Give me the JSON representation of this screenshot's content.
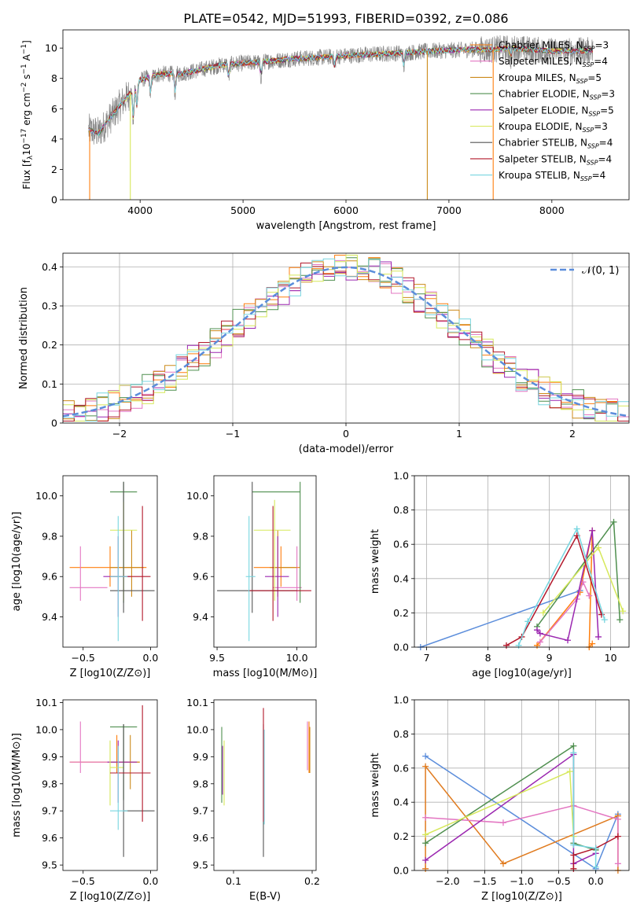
{
  "figure": {
    "title": "PLATE=0542, MJD=51993, FIBERID=0392, z=0.086"
  },
  "colors": {
    "chabrier_miles": "#ff7f0e",
    "salpeter_miles": "#e377c2",
    "kroupa_miles": "#cc8a1a",
    "chabrier_elodie": "#4f8f4f",
    "salpeter_elodie": "#9b27b0",
    "kroupa_elodie": "#d6e85a",
    "chabrier_stelib": "#555555",
    "salpeter_stelib": "#b2182b",
    "kroupa_stelib": "#78d6e0",
    "normal_curve": "#5b8ddb",
    "raw_spectrum": "#888888"
  },
  "chart_data": [
    {
      "id": "spectrum",
      "type": "line",
      "xlabel": "wavelength [Angstrom, rest frame]",
      "ylabel": "Flux [f_λ 10^-17 erg cm^-2 s^-1 A^-1]",
      "xlim": [
        3250,
        8750
      ],
      "ylim": [
        0,
        11.2
      ],
      "xticks": [
        4000,
        5000,
        6000,
        7000,
        8000
      ],
      "yticks": [
        0,
        2,
        4,
        6,
        8,
        10
      ],
      "grid": false,
      "legend_position": "right",
      "series": [
        {
          "name": "Chabrier MILES, N_SSP=3",
          "color": "#ff7f0e"
        },
        {
          "name": "Salpeter MILES, N_SSP=4",
          "color": "#e377c2"
        },
        {
          "name": "Kroupa MILES, N_SSP=5",
          "color": "#cc8a1a"
        },
        {
          "name": "Chabrier ELODIE, N_SSP=3",
          "color": "#4f8f4f"
        },
        {
          "name": "Salpeter ELODIE, N_SSP=5",
          "color": "#9b27b0"
        },
        {
          "name": "Kroupa ELODIE, N_SSP=3",
          "color": "#d6e85a"
        },
        {
          "name": "Chabrier STELIB, N_SSP=4",
          "color": "#555555"
        },
        {
          "name": "Salpeter STELIB, N_SSP=4",
          "color": "#b2182b"
        },
        {
          "name": "Kroupa STELIB, N_SSP=4",
          "color": "#78d6e0"
        }
      ],
      "continuum": {
        "x": [
          3500,
          3600,
          3700,
          3800,
          3900,
          4000,
          4200,
          4400,
          4600,
          4800,
          5000,
          5200,
          5500,
          5800,
          6000,
          6300,
          6600,
          6800,
          7000,
          7200,
          7400,
          7600,
          7800,
          8000,
          8200,
          8400,
          8700
        ],
        "y": [
          4.6,
          4.4,
          5.3,
          6.2,
          7.0,
          7.9,
          8.3,
          8.3,
          8.6,
          8.9,
          9.0,
          9.1,
          9.3,
          9.4,
          9.5,
          9.6,
          9.7,
          9.8,
          9.85,
          9.9,
          9.9,
          10.0,
          9.9,
          9.8,
          9.8,
          9.85,
          9.75
        ]
      }
    },
    {
      "id": "residuals",
      "type": "histogram",
      "xlabel": "(data-model)/error",
      "ylabel": "Normed distribution",
      "xlim": [
        -2.5,
        2.5
      ],
      "ylim": [
        0,
        0.435
      ],
      "xticks": [
        -2,
        -1,
        0,
        1,
        2
      ],
      "yticks": [
        0.0,
        0.1,
        0.2,
        0.3,
        0.4
      ],
      "grid": true,
      "legend": "𝒩(0, 1)",
      "legend_position": "top-right",
      "bin_width": 0.1
    },
    {
      "id": "age_vs_Z",
      "type": "errorbar",
      "xlabel": "Z [log10(Z/Z⊙)]",
      "ylabel": "age [log10(age/yr)]",
      "xlim": [
        -0.65,
        0.05
      ],
      "ylim": [
        9.25,
        10.1
      ],
      "xticks": [
        -0.5,
        0.0
      ],
      "yticks": [
        9.4,
        9.6,
        9.8,
        10.0
      ],
      "points": [
        {
          "model": "chabrier_miles",
          "x": -0.3,
          "y": 9.645,
          "xlo": -0.6,
          "xhi": -0.03,
          "ylo": 9.55,
          "yhi": 9.75
        },
        {
          "model": "salpeter_miles",
          "x": -0.52,
          "y": 9.545,
          "xlo": -0.6,
          "xhi": -0.32,
          "ylo": 9.48,
          "yhi": 9.75
        },
        {
          "model": "kroupa_miles",
          "x": -0.14,
          "y": 9.645,
          "xlo": -0.3,
          "xhi": -0.05,
          "ylo": 9.5,
          "yhi": 9.83
        },
        {
          "model": "chabrier_elodie",
          "x": -0.2,
          "y": 10.02,
          "xlo": -0.3,
          "xhi": -0.1,
          "ylo": 9.47,
          "yhi": 10.07
        },
        {
          "model": "salpeter_elodie",
          "x": -0.24,
          "y": 9.6,
          "xlo": -0.35,
          "xhi": -0.15,
          "ylo": 9.4,
          "yhi": 9.8
        },
        {
          "model": "kroupa_elodie",
          "x": -0.2,
          "y": 9.83,
          "xlo": -0.3,
          "xhi": -0.1,
          "ylo": 9.48,
          "yhi": 9.97
        },
        {
          "model": "chabrier_stelib",
          "x": -0.2,
          "y": 9.53,
          "xlo": -0.3,
          "xhi": 0.03,
          "ylo": 9.42,
          "yhi": 10.07
        },
        {
          "model": "salpeter_stelib",
          "x": -0.06,
          "y": 9.6,
          "xlo": -0.3,
          "xhi": 0.0,
          "ylo": 9.38,
          "yhi": 9.95
        },
        {
          "model": "kroupa_stelib",
          "x": -0.24,
          "y": 9.6,
          "xlo": -0.3,
          "xhi": -0.17,
          "ylo": 9.28,
          "yhi": 9.9
        }
      ]
    },
    {
      "id": "age_vs_mass",
      "type": "errorbar",
      "xlabel": "mass [log10(M/M⊙)]",
      "ylabel": "",
      "xlim": [
        9.48,
        10.12
      ],
      "ylim": [
        9.25,
        10.1
      ],
      "xticks": [
        9.5,
        10.0
      ],
      "yticks": [
        9.4,
        9.6,
        9.8,
        10.0
      ],
      "points": [
        {
          "model": "chabrier_miles",
          "x": 9.9,
          "y": 9.645,
          "xlo": 9.73,
          "xhi": 10.02,
          "ylo": 9.55,
          "yhi": 9.75
        },
        {
          "model": "salpeter_miles",
          "x": 10.0,
          "y": 9.545,
          "xlo": 9.85,
          "xhi": 10.03,
          "ylo": 9.48,
          "yhi": 9.75
        },
        {
          "model": "kroupa_miles",
          "x": 9.88,
          "y": 9.645,
          "xlo": 9.83,
          "xhi": 10.0,
          "ylo": 9.5,
          "yhi": 9.83
        },
        {
          "model": "chabrier_elodie",
          "x": 10.02,
          "y": 10.02,
          "xlo": 9.72,
          "xhi": 10.02,
          "ylo": 9.47,
          "yhi": 10.07
        },
        {
          "model": "salpeter_elodie",
          "x": 9.88,
          "y": 9.6,
          "xlo": 9.8,
          "xhi": 9.95,
          "ylo": 9.4,
          "yhi": 9.8
        },
        {
          "model": "kroupa_elodie",
          "x": 9.86,
          "y": 9.83,
          "xlo": 9.73,
          "xhi": 9.96,
          "ylo": 9.48,
          "yhi": 9.98
        },
        {
          "model": "chabrier_stelib",
          "x": 9.72,
          "y": 9.53,
          "xlo": 9.5,
          "xhi": 10.0,
          "ylo": 9.42,
          "yhi": 10.07
        },
        {
          "model": "salpeter_stelib",
          "x": 9.85,
          "y": 9.53,
          "xlo": 9.7,
          "xhi": 10.09,
          "ylo": 9.38,
          "yhi": 9.95
        },
        {
          "model": "kroupa_stelib",
          "x": 9.7,
          "y": 9.6,
          "xlo": 9.68,
          "xhi": 9.74,
          "ylo": 9.28,
          "yhi": 9.9
        }
      ]
    },
    {
      "id": "weight_vs_age",
      "type": "line",
      "xlabel": "age [log10(age/yr)]",
      "ylabel": "mass weight",
      "xlim": [
        6.8,
        10.3
      ],
      "ylim": [
        0,
        1.0
      ],
      "xticks": [
        7,
        8,
        9,
        10
      ],
      "yticks": [
        0.0,
        0.2,
        0.4,
        0.6,
        0.8,
        1.0
      ],
      "grid": true,
      "series": [
        {
          "model": "kroupa_stelib_blue",
          "color": "#5b8ddb",
          "x": [
            6.9,
            9.5
          ],
          "y": [
            0.0,
            0.33
          ]
        },
        {
          "model": "chabrier_miles",
          "color": "#ff7f0e",
          "x": [
            8.8,
            9.5,
            9.7,
            9.65,
            9.7
          ],
          "y": [
            0.01,
            0.32,
            0.68,
            0.0,
            0.02
          ]
        },
        {
          "model": "salpeter_miles",
          "color": "#e377c2",
          "x": [
            8.85,
            9.45,
            9.55,
            9.65
          ],
          "y": [
            0.03,
            0.28,
            0.38,
            0.3
          ]
        },
        {
          "model": "chabrier_elodie",
          "color": "#4f8f4f",
          "x": [
            8.8,
            10.05,
            10.15
          ],
          "y": [
            0.12,
            0.73,
            0.16
          ]
        },
        {
          "model": "salpeter_elodie",
          "color": "#9b27b0",
          "x": [
            8.8,
            8.85,
            9.3,
            9.7,
            9.8
          ],
          "y": [
            0.1,
            0.08,
            0.04,
            0.68,
            0.06
          ]
        },
        {
          "model": "kroupa_elodie",
          "color": "#d6e85a",
          "x": [
            8.9,
            9.8,
            10.2
          ],
          "y": [
            0.2,
            0.58,
            0.21
          ]
        },
        {
          "model": "salpeter_stelib",
          "color": "#b2182b",
          "x": [
            8.3,
            8.55,
            9.45,
            9.85
          ],
          "y": [
            0.01,
            0.06,
            0.65,
            0.19
          ]
        },
        {
          "model": "kroupa_stelib",
          "color": "#78d6e0",
          "x": [
            8.5,
            8.65,
            9.45,
            9.9
          ],
          "y": [
            0.01,
            0.15,
            0.69,
            0.16
          ]
        }
      ]
    },
    {
      "id": "mass_vs_Z",
      "type": "errorbar",
      "xlabel": "Z [log10(Z/Z⊙)]",
      "ylabel": "mass [log10(M/M⊙)]",
      "xlim": [
        -0.65,
        0.05
      ],
      "ylim": [
        9.48,
        10.11
      ],
      "xticks": [
        -0.5,
        0.0
      ],
      "yticks": [
        9.5,
        9.6,
        9.7,
        9.8,
        9.9,
        10.0,
        10.1
      ],
      "points": [
        {
          "model": "chabrier_miles",
          "x": -0.25,
          "y": 9.88,
          "xlo": -0.6,
          "xhi": -0.08,
          "ylo": 9.84,
          "yhi": 9.98
        },
        {
          "model": "salpeter_miles",
          "x": -0.52,
          "y": 9.88,
          "xlo": -0.6,
          "xhi": -0.3,
          "ylo": 9.84,
          "yhi": 10.03
        },
        {
          "model": "kroupa_miles",
          "x": -0.15,
          "y": 9.88,
          "xlo": -0.3,
          "xhi": -0.08,
          "ylo": 9.78,
          "yhi": 9.98
        },
        {
          "model": "chabrier_elodie",
          "x": -0.2,
          "y": 10.01,
          "xlo": -0.3,
          "xhi": -0.1,
          "ylo": 9.74,
          "yhi": 10.02
        },
        {
          "model": "salpeter_elodie",
          "x": -0.24,
          "y": 9.88,
          "xlo": -0.32,
          "xhi": -0.1,
          "ylo": 9.73,
          "yhi": 9.96
        },
        {
          "model": "kroupa_elodie",
          "x": -0.3,
          "y": 9.86,
          "xlo": -0.3,
          "xhi": -0.2,
          "ylo": 9.72,
          "yhi": 9.96
        },
        {
          "model": "chabrier_stelib",
          "x": -0.2,
          "y": 9.7,
          "xlo": -0.2,
          "xhi": 0.03,
          "ylo": 9.53,
          "yhi": 10.02
        },
        {
          "model": "salpeter_stelib",
          "x": -0.06,
          "y": 9.84,
          "xlo": -0.3,
          "xhi": 0.0,
          "ylo": 9.66,
          "yhi": 10.09
        },
        {
          "model": "kroupa_stelib",
          "x": -0.24,
          "y": 9.7,
          "xlo": -0.3,
          "xhi": -0.17,
          "ylo": 9.63,
          "yhi": 9.94
        }
      ]
    },
    {
      "id": "mass_vs_ebv",
      "type": "errorbar",
      "xlabel": "E(B-V)",
      "ylabel": "",
      "xlim": [
        0.075,
        0.205
      ],
      "ylim": [
        9.48,
        10.11
      ],
      "xticks": [
        0.1,
        0.2
      ],
      "yticks": [
        9.5,
        9.6,
        9.7,
        9.8,
        9.9,
        10.0,
        10.1
      ],
      "points": [
        {
          "model": "chabrier_miles",
          "x": 0.196,
          "y": 9.9,
          "ylo": 9.84,
          "yhi": 10.03
        },
        {
          "model": "salpeter_miles",
          "x": 0.194,
          "y": 9.9,
          "ylo": 9.85,
          "yhi": 10.03
        },
        {
          "model": "kroupa_miles",
          "x": 0.197,
          "y": 9.88,
          "ylo": 9.84,
          "yhi": 10.01
        },
        {
          "model": "chabrier_elodie",
          "x": 0.085,
          "y": 9.88,
          "ylo": 9.73,
          "yhi": 10.01
        },
        {
          "model": "salpeter_elodie",
          "x": 0.086,
          "y": 9.88,
          "ylo": 9.76,
          "yhi": 9.94
        },
        {
          "model": "kroupa_elodie",
          "x": 0.088,
          "y": 9.86,
          "ylo": 9.72,
          "yhi": 9.96
        },
        {
          "model": "chabrier_stelib",
          "x": 0.138,
          "y": 9.7,
          "ylo": 9.53,
          "yhi": 10.02
        },
        {
          "model": "salpeter_stelib",
          "x": 0.138,
          "y": 9.84,
          "ylo": 9.66,
          "yhi": 10.08
        },
        {
          "model": "kroupa_stelib",
          "x": 0.139,
          "y": 9.7,
          "ylo": 9.65,
          "yhi": 10.0
        }
      ]
    },
    {
      "id": "weight_vs_Z",
      "type": "line",
      "xlabel": "Z [log10(Z/Z⊙)]",
      "ylabel": "mass weight",
      "xlim": [
        -2.45,
        0.45
      ],
      "ylim": [
        0,
        1.0
      ],
      "xticks": [
        -2.0,
        -1.5,
        -1.0,
        -0.5,
        0.0
      ],
      "yticks": [
        0.0,
        0.2,
        0.4,
        0.6,
        0.8,
        1.0
      ],
      "grid": true,
      "series": [
        {
          "model": "kroupa_stelib_blue",
          "color": "#5b8ddb",
          "x": [
            -2.3,
            0.0,
            0.3
          ],
          "y": [
            0.67,
            0.01,
            0.33
          ]
        },
        {
          "model": "chabrier_miles",
          "color": "#e07b1f",
          "x": [
            -2.3,
            -2.3,
            -1.25,
            0.3,
            0.3
          ],
          "y": [
            0.01,
            0.61,
            0.04,
            0.32,
            0.0
          ]
        },
        {
          "model": "salpeter_miles",
          "color": "#e377c2",
          "x": [
            -2.3,
            -1.25,
            -0.3,
            0.3,
            0.3
          ],
          "y": [
            0.31,
            0.28,
            0.38,
            0.3,
            0.04
          ]
        },
        {
          "model": "chabrier_elodie",
          "color": "#4f8f4f",
          "x": [
            -2.3,
            -0.3,
            -0.3,
            0.0
          ],
          "y": [
            0.16,
            0.73,
            0.16,
            0.12
          ]
        },
        {
          "model": "salpeter_elodie",
          "color": "#9b27b0",
          "x": [
            -2.3,
            -0.3,
            -0.3,
            0.0
          ],
          "y": [
            0.06,
            0.68,
            0.04,
            0.1
          ]
        },
        {
          "model": "kroupa_elodie",
          "color": "#d6e85a",
          "x": [
            -2.3,
            -0.35,
            -0.3
          ],
          "y": [
            0.21,
            0.58,
            0.2
          ]
        },
        {
          "model": "salpeter_stelib",
          "color": "#b2182b",
          "x": [
            -0.3,
            -0.3,
            0.0,
            0.3
          ],
          "y": [
            0.01,
            0.09,
            0.13,
            0.2
          ]
        },
        {
          "model": "kroupa_stelib",
          "color": "#78d6e0",
          "x": [
            -0.3,
            -0.3,
            0.0,
            0.0
          ],
          "y": [
            0.69,
            0.15,
            0.13,
            0.02
          ]
        }
      ]
    }
  ]
}
